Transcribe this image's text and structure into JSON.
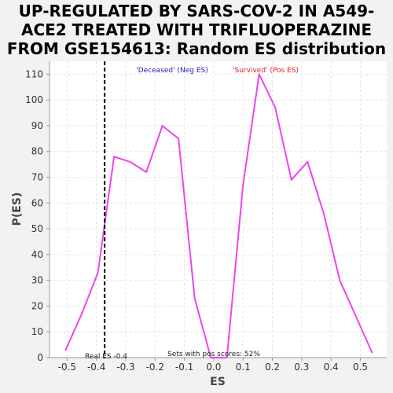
{
  "chart_data": {
    "type": "line",
    "title_lines": [
      "UP-REGULATED BY SARS-COV-2 IN A549-",
      "ACE2 TREATED WITH TRIFLUOPERAZINE",
      "FROM GSE154613: Random ES distribution"
    ],
    "xlabel": "ES",
    "ylabel": "P(ES)",
    "xlim": [
      -0.56,
      0.59
    ],
    "ylim": [
      0,
      115
    ],
    "x_ticks": [
      -0.5,
      -0.4,
      -0.3,
      -0.2,
      -0.1,
      0.0,
      0.1,
      0.2,
      0.3,
      0.4,
      0.5
    ],
    "x_tick_labels": [
      "-0.5",
      "-0.4",
      "-0.3",
      "-0.2",
      "-0.1",
      "0.0",
      "0.1",
      "0.2",
      "0.3",
      "0.4",
      "0.5"
    ],
    "y_ticks": [
      0,
      10,
      20,
      30,
      40,
      50,
      60,
      70,
      80,
      90,
      100,
      110
    ],
    "y_tick_labels": [
      "0",
      "10",
      "20",
      "30",
      "40",
      "50",
      "60",
      "70",
      "80",
      "90",
      "100",
      "110"
    ],
    "grid": true,
    "series": [
      {
        "color": "#ee44ee",
        "x": [
          -0.505,
          -0.45,
          -0.395,
          -0.34,
          -0.285,
          -0.23,
          -0.175,
          -0.12,
          -0.065,
          -0.01,
          0.045,
          0.1,
          0.155,
          0.21,
          0.265,
          0.32,
          0.375,
          0.43,
          0.485,
          0.54
        ],
        "y": [
          3,
          17,
          33,
          78,
          76,
          72,
          90,
          85,
          23,
          0,
          0,
          67,
          110,
          97,
          69,
          76,
          56,
          30,
          16,
          2
        ]
      }
    ],
    "real_es": {
      "value": -0.372,
      "label": "Real ES -0.4",
      "style": "dashed",
      "color": "#000000"
    },
    "annotations": {
      "neg_label": "'Deceased' (Neg ES)",
      "neg_color": "#2222bb",
      "pos_label": "'Survived' (Pos ES)",
      "pos_color": "#dd2222",
      "pos_scores_label": "Sets with pos scores: 52%"
    }
  }
}
